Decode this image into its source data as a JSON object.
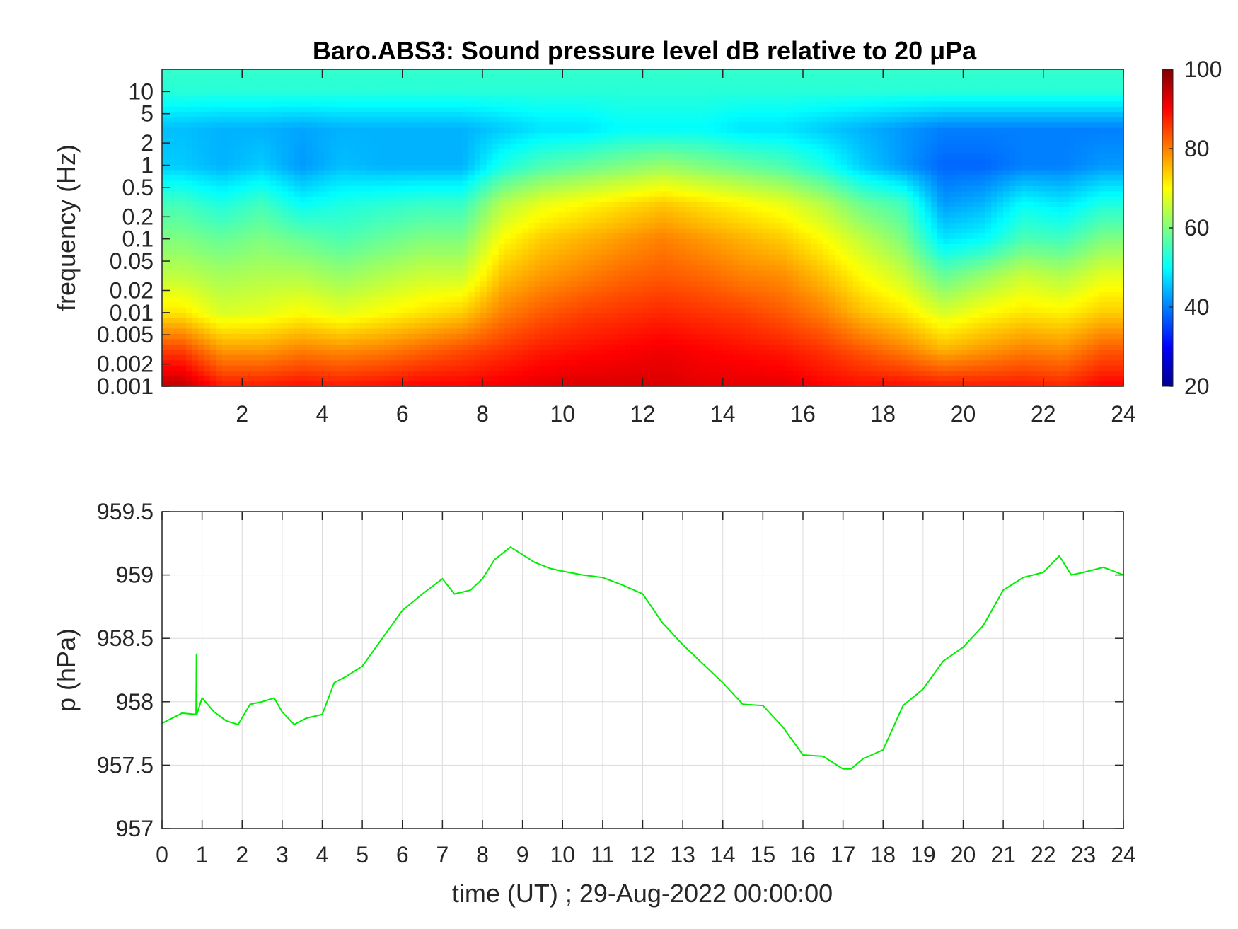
{
  "chart_data": [
    {
      "type": "heatmap",
      "title": "Baro.ABS3: Sound pressure level dB relative to 20 μPa",
      "ylabel": "frequency (Hz)",
      "xlim": [
        0,
        24
      ],
      "x_ticks": [
        2,
        4,
        6,
        8,
        10,
        12,
        14,
        16,
        18,
        20,
        22,
        24
      ],
      "y_scale": "log",
      "ylim": [
        0.001,
        20
      ],
      "y_ticks": [
        0.001,
        0.002,
        0.005,
        0.01,
        0.02,
        0.05,
        0.1,
        0.2,
        0.5,
        1,
        2,
        5,
        10
      ],
      "y_tick_labels": [
        "0.001",
        "0.002",
        "0.005",
        "0.01",
        "0.02",
        "0.05",
        "0.1",
        "0.2",
        "0.5",
        "1",
        "2",
        "5",
        "10"
      ],
      "colormap": "jet",
      "colorbar": {
        "min": 20,
        "max": 100,
        "ticks": [
          20,
          40,
          60,
          80,
          100
        ],
        "position": "right"
      },
      "hours": [
        0.5,
        1.5,
        2.5,
        3.5,
        4.5,
        5.5,
        6.5,
        7.5,
        8.5,
        9.5,
        10.5,
        11.5,
        12.5,
        13.5,
        14.5,
        15.5,
        16.5,
        17.5,
        18.5,
        19.5,
        20.5,
        21.5,
        22.5,
        23.5
      ],
      "log10_freq_bands": [
        -3,
        -2.5,
        -2,
        -1.5,
        -1,
        -0.5,
        0,
        0.5,
        1,
        1.3
      ],
      "levels_db": [
        [
          95,
          88,
          88,
          89,
          88,
          89,
          90,
          90,
          91,
          92,
          93,
          93,
          93,
          92,
          92,
          92,
          90,
          89,
          89,
          88,
          88,
          88,
          87,
          90
        ],
        [
          85,
          78,
          78,
          80,
          79,
          80,
          82,
          84,
          86,
          88,
          89,
          90,
          91,
          90,
          89,
          88,
          86,
          83,
          80,
          76,
          78,
          80,
          79,
          83
        ],
        [
          72,
          67,
          68,
          70,
          68,
          70,
          72,
          74,
          80,
          83,
          85,
          86,
          87,
          86,
          85,
          83,
          80,
          75,
          72,
          67,
          70,
          72,
          71,
          74
        ],
        [
          65,
          63,
          64,
          64,
          62,
          64,
          66,
          66,
          75,
          78,
          80,
          82,
          83,
          82,
          80,
          79,
          75,
          70,
          66,
          58,
          62,
          66,
          64,
          68
        ],
        [
          60,
          58,
          60,
          58,
          56,
          58,
          60,
          60,
          70,
          74,
          76,
          78,
          80,
          78,
          76,
          74,
          70,
          65,
          60,
          48,
          50,
          56,
          55,
          60
        ],
        [
          55,
          52,
          55,
          50,
          52,
          53,
          54,
          54,
          64,
          68,
          70,
          72,
          74,
          72,
          70,
          68,
          64,
          58,
          55,
          42,
          44,
          50,
          48,
          52
        ],
        [
          46,
          44,
          46,
          42,
          45,
          44,
          44,
          44,
          52,
          56,
          58,
          60,
          62,
          60,
          58,
          56,
          52,
          46,
          42,
          38,
          38,
          40,
          40,
          42
        ],
        [
          45,
          44,
          44,
          43,
          44,
          44,
          44,
          44,
          46,
          48,
          48,
          50,
          50,
          50,
          48,
          48,
          46,
          44,
          42,
          40,
          40,
          40,
          40,
          40
        ],
        [
          53,
          53,
          53,
          53,
          53,
          53,
          53,
          53,
          53,
          53,
          53,
          53,
          53,
          53,
          53,
          53,
          53,
          53,
          53,
          53,
          53,
          53,
          53,
          53
        ],
        [
          54,
          54,
          54,
          54,
          54,
          54,
          54,
          54,
          54,
          54,
          54,
          54,
          54,
          54,
          54,
          54,
          54,
          54,
          54,
          54,
          54,
          54,
          54,
          54
        ]
      ]
    },
    {
      "type": "line",
      "ylabel": "p (hPa)",
      "xlabel": "time (UT) ; 29-Aug-2022 00:00:00",
      "xlim": [
        0,
        24
      ],
      "ylim": [
        957,
        959.5
      ],
      "x_ticks": [
        0,
        1,
        2,
        3,
        4,
        5,
        6,
        7,
        8,
        9,
        10,
        11,
        12,
        13,
        14,
        15,
        16,
        17,
        18,
        19,
        20,
        21,
        22,
        23,
        24
      ],
      "y_ticks": [
        957,
        957.5,
        958,
        958.5,
        959,
        959.5
      ],
      "y_tick_labels": [
        "957",
        "957.5",
        "958",
        "958.5",
        "959",
        "959.5"
      ],
      "grid": true,
      "series": [
        {
          "color": "#00ee00",
          "x": [
            0,
            0.5,
            0.85,
            0.86,
            0.87,
            1.0,
            1.3,
            1.6,
            1.9,
            2.2,
            2.5,
            2.8,
            3.0,
            3.3,
            3.6,
            4.0,
            4.3,
            4.6,
            5.0,
            5.5,
            6.0,
            6.5,
            7.0,
            7.3,
            7.7,
            8.0,
            8.3,
            8.7,
            9.0,
            9.3,
            9.7,
            10.0,
            10.5,
            11.0,
            11.5,
            12.0,
            12.5,
            13.0,
            13.5,
            14.0,
            14.5,
            15.0,
            15.5,
            16.0,
            16.5,
            17.0,
            17.2,
            17.5,
            18.0,
            18.5,
            19.0,
            19.5,
            20.0,
            20.5,
            21.0,
            21.5,
            22.0,
            22.4,
            22.7,
            23.0,
            23.5,
            24.0
          ],
          "y": [
            957.83,
            957.91,
            957.9,
            958.38,
            957.9,
            958.03,
            957.92,
            957.85,
            957.82,
            957.98,
            958.0,
            958.03,
            957.92,
            957.82,
            957.87,
            957.9,
            958.15,
            958.2,
            958.28,
            958.5,
            958.72,
            958.85,
            958.97,
            958.85,
            958.88,
            958.97,
            959.12,
            959.22,
            959.16,
            959.1,
            959.05,
            959.03,
            959.0,
            958.98,
            958.92,
            958.85,
            958.62,
            958.45,
            958.3,
            958.15,
            957.98,
            957.97,
            957.8,
            957.58,
            957.57,
            957.47,
            957.47,
            957.55,
            957.62,
            957.97,
            958.1,
            958.32,
            958.43,
            958.6,
            958.88,
            958.98,
            959.02,
            959.15,
            959.0,
            959.02,
            959.06,
            959.0
          ]
        }
      ]
    }
  ]
}
